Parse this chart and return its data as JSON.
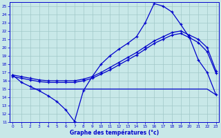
{
  "title": "Graphe des températures (°c)",
  "bg_color": "#c8e8e8",
  "grid_color": "#a0c8c8",
  "line_color": "#0000cc",
  "xlim": [
    -0.3,
    23.3
  ],
  "ylim": [
    11,
    25.5
  ],
  "yticks": [
    11,
    12,
    13,
    14,
    15,
    16,
    17,
    18,
    19,
    20,
    21,
    22,
    23,
    24,
    25
  ],
  "xticks": [
    0,
    1,
    2,
    3,
    4,
    5,
    6,
    7,
    8,
    9,
    10,
    11,
    12,
    13,
    14,
    15,
    16,
    17,
    18,
    19,
    20,
    21,
    22,
    23
  ],
  "series1_x": [
    0,
    1,
    2,
    3,
    4,
    5,
    6,
    7,
    8,
    9,
    10,
    11,
    12,
    13,
    14,
    15,
    16,
    17,
    18,
    19,
    20,
    21,
    22,
    23
  ],
  "series1_y": [
    16.7,
    15.8,
    15.3,
    14.8,
    14.2,
    13.5,
    12.5,
    11.1,
    14.8,
    16.5,
    18.0,
    19.0,
    19.8,
    20.5,
    21.3,
    23.0,
    25.3,
    25.0,
    24.3,
    22.8,
    21.2,
    18.5,
    17.0,
    14.3
  ],
  "series2_x": [
    2,
    3,
    14,
    22,
    23
  ],
  "series2_y": [
    15.0,
    15.0,
    15.0,
    15.0,
    14.3
  ],
  "series3_x": [
    0,
    1,
    2,
    3,
    4,
    5,
    6,
    7,
    8,
    9,
    10,
    11,
    12,
    13,
    14,
    15,
    16,
    17,
    18,
    19,
    20,
    21,
    22,
    23
  ],
  "series3_y": [
    16.5,
    16.3,
    16.1,
    15.9,
    15.8,
    15.8,
    15.8,
    15.8,
    16.0,
    16.3,
    16.8,
    17.3,
    17.9,
    18.5,
    19.1,
    19.8,
    20.5,
    21.0,
    21.5,
    21.7,
    21.2,
    20.6,
    19.5,
    16.9
  ],
  "series4_x": [
    0,
    1,
    2,
    3,
    4,
    5,
    6,
    7,
    8,
    9,
    10,
    11,
    12,
    13,
    14,
    15,
    16,
    17,
    18,
    19,
    20,
    21,
    22,
    23
  ],
  "series4_y": [
    16.7,
    16.5,
    16.3,
    16.1,
    16.0,
    16.0,
    16.0,
    16.0,
    16.2,
    16.5,
    17.0,
    17.6,
    18.2,
    18.8,
    19.4,
    20.1,
    20.8,
    21.3,
    21.8,
    22.0,
    21.5,
    21.0,
    20.0,
    17.2
  ]
}
